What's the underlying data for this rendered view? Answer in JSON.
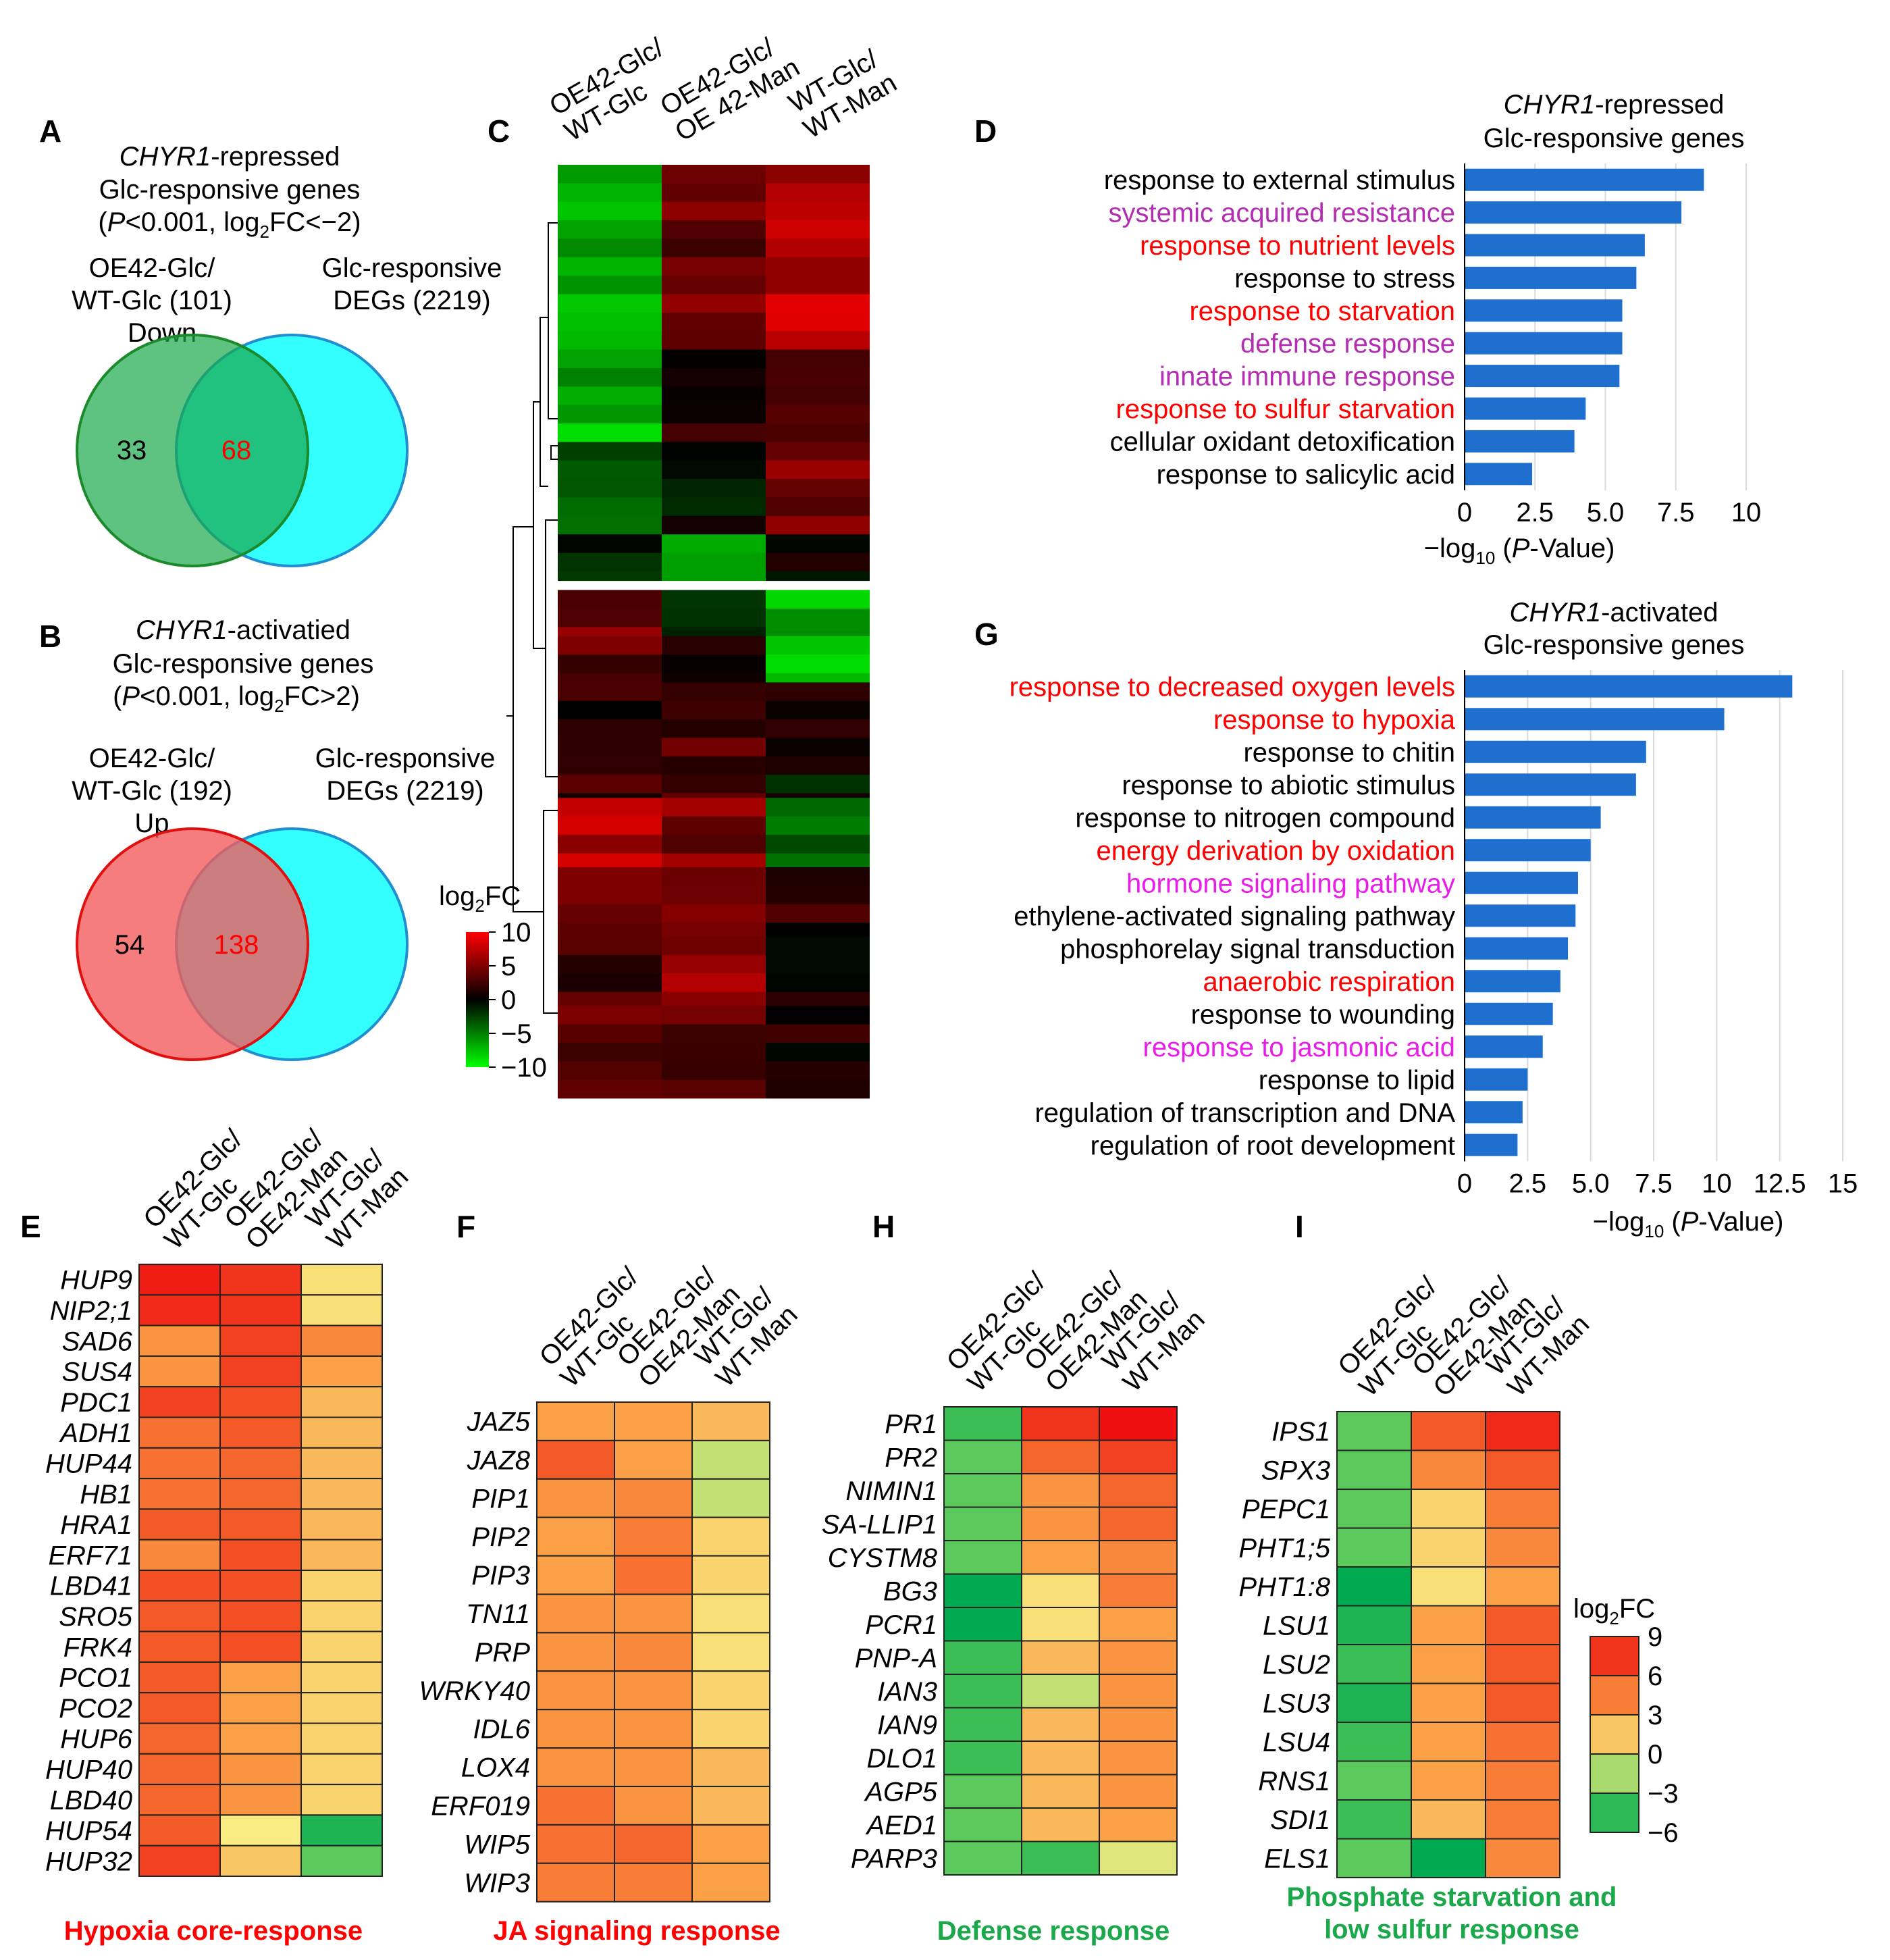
{
  "colors": {
    "bar": "#1f6fcf",
    "red_label": "#ff0000",
    "magenta_label": "#b32db3",
    "pink_label": "#e81ee8",
    "green_label": "#1aa84a",
    "venn_down": "#3daa5c",
    "venn_up": "#f25c5c",
    "venn_degs": "#33ffff"
  },
  "panels": {
    "A": {
      "letter": "A",
      "title_italic": "CHYR1",
      "title_rest": "-repressed",
      "title2": "Glc-responsive genes",
      "cond_open": "(",
      "cond_p": "P",
      "cond_mid": "<0.001, log",
      "cond_sub": "2",
      "cond_end": "FC<−2)",
      "left_label1": "OE42-Glc/",
      "left_label2": "WT-Glc (101)",
      "left_label3": "Down",
      "right_label1": "Glc-responsive",
      "right_label2": "DEGs (2219)",
      "only_left": "33",
      "overlap": "68"
    },
    "B": {
      "letter": "B",
      "title_italic": "CHYR1",
      "title_rest": "-activatied",
      "title2": "Glc-responsive genes",
      "cond_open": "(",
      "cond_p": "P",
      "cond_mid": "<0.001, log",
      "cond_sub": "2",
      "cond_end": "FC>2)",
      "left_label1": "OE42-Glc/",
      "left_label2": "WT-Glc (192)",
      "left_label3": "Up",
      "right_label1": "Glc-responsive",
      "right_label2": "DEGs (2219)",
      "only_left": "54",
      "overlap": "138"
    },
    "C": {
      "letter": "C",
      "col_headers": [
        [
          "OE42-Glc/",
          "WT-Glc"
        ],
        [
          "OE42-Glc/",
          "OE 42-Man"
        ],
        [
          "WT-Glc/",
          "WT-Man"
        ]
      ],
      "legend_title": "log",
      "legend_sub": "2",
      "legend_title_end": "FC",
      "legend_ticks": [
        "10",
        "5",
        "0",
        "−5",
        "−10"
      ]
    },
    "D": {
      "letter": "D",
      "title_italic": "CHYR1",
      "title_rest": "-repressed",
      "title2": "Glc-responsive genes",
      "xlabel_pre": "−log",
      "xlabel_sub": "10",
      "xlabel_p": "P",
      "xlabel_post": "-Value)",
      "xlabel_open": " (",
      "xticks": [
        "0",
        "2.5",
        "5.0",
        "7.5",
        "10"
      ]
    },
    "G": {
      "letter": "G",
      "title_italic": "CHYR1",
      "title_rest": "-activated",
      "title2": "Glc-responsive genes",
      "xlabel_pre": "−log",
      "xlabel_sub": "10",
      "xlabel_p": "P",
      "xlabel_post": "-Value)",
      "xlabel_open": " (",
      "xticks": [
        "0",
        "2.5",
        "5.0",
        "7.5",
        "10",
        "12.5",
        "15"
      ]
    },
    "E": {
      "letter": "E",
      "caption": "Hypoxia core-response"
    },
    "F": {
      "letter": "F",
      "caption": "JA signaling response"
    },
    "H": {
      "letter": "H",
      "caption": "Defense response"
    },
    "I": {
      "letter": "I",
      "caption1": "Phosphate starvation and",
      "caption2": "low sulfur response",
      "legend_title": "log",
      "legend_sub": "2",
      "legend_title_end": "FC",
      "legend_ticks": [
        "9",
        "6",
        "3",
        "0",
        "−3",
        "−6"
      ]
    },
    "heat_cols": [
      [
        "OE42-Glc/",
        "WT-Glc"
      ],
      [
        "OE42-Glc/",
        "OE42-Man"
      ],
      [
        "WT-Glc/",
        "WT-Man"
      ]
    ]
  },
  "chart_data": [
    {
      "panel": "D",
      "type": "bar",
      "orientation": "horizontal",
      "title": "CHYR1-repressed Glc-responsive genes",
      "xlabel": "−log10 (P-Value)",
      "xlim": [
        0,
        10
      ],
      "categories": [
        "response to external stimulus",
        "systemic acquired resistance",
        "response to nutrient levels",
        "response to stress",
        "response to starvation",
        "defense response",
        "innate immune response",
        "response to sulfur starvation",
        "cellular oxidant detoxification",
        "response to salicylic acid"
      ],
      "label_colors": [
        "#000000",
        "#b32db3",
        "#ff0000",
        "#000000",
        "#ff0000",
        "#b32db3",
        "#b32db3",
        "#ff0000",
        "#000000",
        "#000000"
      ],
      "values": [
        8.5,
        7.7,
        6.4,
        6.1,
        5.6,
        5.6,
        5.5,
        4.3,
        3.9,
        2.4
      ]
    },
    {
      "panel": "G",
      "type": "bar",
      "orientation": "horizontal",
      "title": "CHYR1-activated Glc-responsive genes",
      "xlabel": "−log10 (P-Value)",
      "xlim": [
        0,
        15
      ],
      "categories": [
        "response to decreased oxygen levels",
        "response to hypoxia",
        "response to chitin",
        "response to abiotic stimulus",
        "response to nitrogen compound",
        "energy derivation by oxidation",
        "hormone signaling pathway",
        "ethylene-activated signaling pathway",
        "phosphorelay signal transduction",
        "anaerobic respiration",
        "response to wounding",
        "response to jasmonic acid",
        "response to lipid",
        "regulation of transcription and DNA",
        "regulation of root development"
      ],
      "label_colors": [
        "#ff0000",
        "#ff0000",
        "#000000",
        "#000000",
        "#000000",
        "#ff0000",
        "#e81ee8",
        "#000000",
        "#000000",
        "#ff0000",
        "#000000",
        "#e81ee8",
        "#000000",
        "#000000",
        "#000000"
      ],
      "values": [
        13.0,
        10.3,
        7.2,
        6.8,
        5.4,
        5.0,
        4.5,
        4.4,
        4.1,
        3.8,
        3.5,
        3.1,
        2.5,
        2.3,
        2.1
      ]
    },
    {
      "panel": "E",
      "type": "heatmap",
      "caption": "Hypoxia core-response",
      "columns": [
        "OE42-Glc/WT-Glc",
        "OE42-Glc/OE42-Man",
        "WT-Glc/WT-Man"
      ],
      "rows": [
        "HUP9",
        "NIP2;1",
        "SAD6",
        "SUS4",
        "PDC1",
        "ADH1",
        "HUP44",
        "HB1",
        "HRA1",
        "ERF71",
        "LBD41",
        "SRO5",
        "FRK4",
        "PCO1",
        "PCO2",
        "HUP6",
        "HUP40",
        "LBD40",
        "HUP54",
        "HUP32"
      ],
      "values": [
        [
          8.5,
          7.5,
          0.5
        ],
        [
          8,
          7.5,
          0.5
        ],
        [
          3.5,
          7,
          4
        ],
        [
          3.5,
          7,
          3
        ],
        [
          7,
          6.5,
          2
        ],
        [
          5,
          6,
          2
        ],
        [
          5,
          5.5,
          2
        ],
        [
          5,
          5.5,
          2
        ],
        [
          6,
          6,
          2
        ],
        [
          4,
          6.5,
          2
        ],
        [
          6.5,
          6.5,
          1
        ],
        [
          6,
          6.5,
          1
        ],
        [
          6,
          6.5,
          1
        ],
        [
          6,
          3,
          1
        ],
        [
          6,
          3,
          1
        ],
        [
          5.5,
          3,
          1
        ],
        [
          5.5,
          3.5,
          1
        ],
        [
          5.5,
          3.5,
          1
        ],
        [
          6,
          0,
          -5
        ],
        [
          7,
          1.5,
          -3
        ]
      ]
    },
    {
      "panel": "F",
      "type": "heatmap",
      "caption": "JA signaling response",
      "columns": [
        "OE42-Glc/WT-Glc",
        "OE42-Glc/OE42-Man",
        "WT-Glc/WT-Man"
      ],
      "rows": [
        "JAZ5",
        "JAZ8",
        "PIP1",
        "PIP2",
        "PIP3",
        "TN11",
        "PRP",
        "WRKY40",
        "IDL6",
        "LOX4",
        "ERF019",
        "WIP5",
        "WIP3"
      ],
      "values": [
        [
          3,
          3,
          2
        ],
        [
          6,
          3,
          -1
        ],
        [
          3.5,
          4,
          -1
        ],
        [
          3,
          4.5,
          1
        ],
        [
          3,
          5,
          1
        ],
        [
          3.5,
          3.5,
          0.5
        ],
        [
          3.5,
          4,
          0.5
        ],
        [
          3.5,
          3.5,
          1
        ],
        [
          3.5,
          3.5,
          1
        ],
        [
          3.5,
          3.5,
          2
        ],
        [
          5,
          3.5,
          2
        ],
        [
          5,
          5.5,
          3
        ],
        [
          4.5,
          4.5,
          3
        ]
      ]
    },
    {
      "panel": "H",
      "type": "heatmap",
      "caption": "Defense response",
      "columns": [
        "OE42-Glc/WT-Glc",
        "OE42-Glc/OE42-Man",
        "WT-Glc/WT-Man"
      ],
      "rows": [
        "PR1",
        "PR2",
        "NIMIN1",
        "SA-LLIP1",
        "CYSTM8",
        "BG3",
        "PCR1",
        "PNP-A",
        "IAN3",
        "IAN9",
        "DLO1",
        "AGP5",
        "AED1",
        "PARP3"
      ],
      "values": [
        [
          -4,
          7.5,
          9
        ],
        [
          -3,
          5.5,
          7
        ],
        [
          -3,
          3.5,
          5.5
        ],
        [
          -3,
          3.5,
          5.5
        ],
        [
          -3,
          3,
          4
        ],
        [
          -6,
          0.5,
          4.5
        ],
        [
          -6,
          0.5,
          3
        ],
        [
          -4,
          2,
          3.5
        ],
        [
          -4,
          -1,
          3.5
        ],
        [
          -4,
          2,
          3.5
        ],
        [
          -4,
          2,
          3.5
        ],
        [
          -3,
          2,
          3.5
        ],
        [
          -3,
          2,
          3
        ],
        [
          -3,
          -4,
          -0.5
        ]
      ]
    },
    {
      "panel": "I",
      "type": "heatmap",
      "caption": "Phosphate starvation and low sulfur response",
      "columns": [
        "OE42-Glc/WT-Glc",
        "OE42-Glc/OE42-Man",
        "WT-Glc/WT-Man"
      ],
      "rows": [
        "IPS1",
        "SPX3",
        "PEPC1",
        "PHT1;5",
        "PHT1:8",
        "LSU1",
        "LSU2",
        "LSU3",
        "LSU4",
        "RNS1",
        "SDI1",
        "ELS1"
      ],
      "values": [
        [
          -3,
          6,
          8
        ],
        [
          -3,
          4,
          6
        ],
        [
          -3,
          1,
          4.5
        ],
        [
          -3,
          1,
          4
        ],
        [
          -6,
          0.5,
          3
        ],
        [
          -5,
          3,
          6
        ],
        [
          -4,
          3,
          6
        ],
        [
          -5,
          3,
          6
        ],
        [
          -4,
          3,
          5
        ],
        [
          -3,
          3,
          4.5
        ],
        [
          -4,
          2,
          4.5
        ],
        [
          -3,
          -6,
          4
        ]
      ]
    },
    {
      "panel": "C",
      "type": "heatmap",
      "columns": [
        "OE42-Glc/WT-Glc",
        "OE42-Glc/OE 42-Man",
        "WT-Glc/WT-Man"
      ],
      "color_scale": [
        -10,
        10
      ],
      "row_blocks": [
        {
          "rows": 40,
          "values": [
            -6,
            4,
            7
          ]
        },
        {
          "rows": 20,
          "values": [
            -7,
            1,
            4
          ]
        },
        {
          "rows": 20,
          "values": [
            -4,
            0,
            5
          ]
        },
        {
          "rows": 10,
          "values": [
            -2,
            -6,
            0
          ]
        },
        {
          "rows": 10,
          "values": [
            4,
            -3,
            -7
          ]
        },
        {
          "rows": 10,
          "values": [
            4,
            1,
            -8
          ]
        },
        {
          "rows": 25,
          "values": [
            2,
            3,
            0
          ]
        },
        {
          "rows": 15,
          "values": [
            7,
            5,
            -3
          ]
        },
        {
          "rows": 15,
          "values": [
            5,
            6,
            2
          ]
        },
        {
          "rows": 15,
          "values": [
            3,
            6,
            0
          ]
        },
        {
          "rows": 20,
          "values": [
            4,
            4,
            1
          ]
        }
      ]
    }
  ]
}
